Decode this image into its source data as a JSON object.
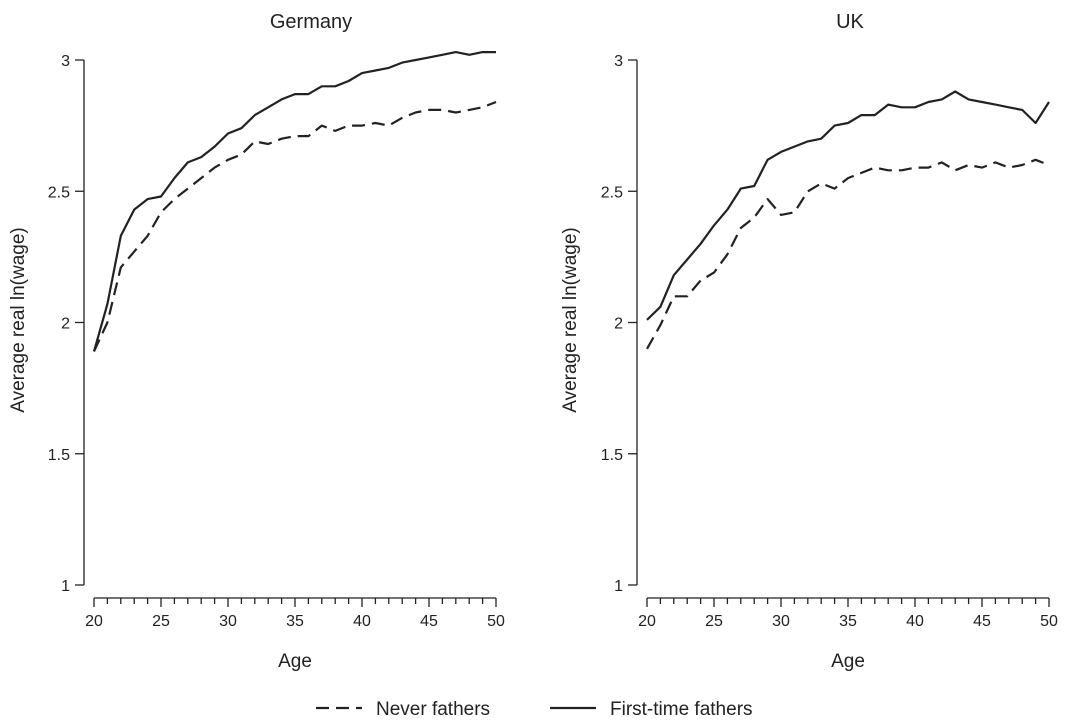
{
  "chart_data": [
    {
      "type": "line",
      "title": "Germany",
      "xlabel": "Age",
      "ylabel": "Average real ln(wage)",
      "xlim": [
        20,
        50
      ],
      "ylim": [
        1,
        3
      ],
      "x_ticks": [
        20,
        25,
        30,
        35,
        40,
        45,
        50
      ],
      "y_ticks": [
        1,
        1.5,
        2,
        2.5,
        3
      ],
      "grid": false,
      "x": [
        20,
        21,
        22,
        23,
        24,
        25,
        26,
        27,
        28,
        29,
        30,
        31,
        32,
        33,
        34,
        35,
        36,
        37,
        38,
        39,
        40,
        41,
        42,
        43,
        44,
        45,
        46,
        47,
        48,
        49,
        50
      ],
      "series": [
        {
          "name": "Never fathers",
          "style": "dashed",
          "values": [
            1.89,
            2.0,
            2.21,
            2.27,
            2.33,
            2.42,
            2.47,
            2.51,
            2.55,
            2.59,
            2.62,
            2.64,
            2.69,
            2.68,
            2.7,
            2.71,
            2.71,
            2.75,
            2.73,
            2.75,
            2.75,
            2.76,
            2.75,
            2.78,
            2.8,
            2.81,
            2.81,
            2.8,
            2.81,
            2.82,
            2.84
          ]
        },
        {
          "name": "First-time fathers",
          "style": "solid",
          "values": [
            1.89,
            2.07,
            2.33,
            2.43,
            2.47,
            2.48,
            2.55,
            2.61,
            2.63,
            2.67,
            2.72,
            2.74,
            2.79,
            2.82,
            2.85,
            2.87,
            2.87,
            2.9,
            2.9,
            2.92,
            2.95,
            2.96,
            2.97,
            2.99,
            3.0,
            3.01,
            3.02,
            3.03,
            3.02,
            3.03,
            3.03
          ]
        }
      ]
    },
    {
      "type": "line",
      "title": "UK",
      "xlabel": "Age",
      "ylabel": "Average real ln(wage)",
      "xlim": [
        20,
        50
      ],
      "ylim": [
        1,
        3
      ],
      "x_ticks": [
        20,
        25,
        30,
        35,
        40,
        45,
        50
      ],
      "y_ticks": [
        1,
        1.5,
        2,
        2.5,
        3
      ],
      "grid": false,
      "x": [
        20,
        21,
        22,
        23,
        24,
        25,
        26,
        27,
        28,
        29,
        30,
        31,
        32,
        33,
        34,
        35,
        36,
        37,
        38,
        39,
        40,
        41,
        42,
        43,
        44,
        45,
        46,
        47,
        48,
        49,
        50
      ],
      "series": [
        {
          "name": "Never fathers",
          "style": "dashed",
          "values": [
            1.9,
            1.99,
            2.1,
            2.1,
            2.16,
            2.19,
            2.26,
            2.36,
            2.4,
            2.47,
            2.41,
            2.42,
            2.5,
            2.53,
            2.51,
            2.55,
            2.57,
            2.59,
            2.58,
            2.58,
            2.59,
            2.59,
            2.61,
            2.58,
            2.6,
            2.59,
            2.61,
            2.59,
            2.6,
            2.62,
            2.6
          ]
        },
        {
          "name": "First-time fathers",
          "style": "solid",
          "values": [
            2.01,
            2.06,
            2.18,
            2.24,
            2.3,
            2.37,
            2.43,
            2.51,
            2.52,
            2.62,
            2.65,
            2.67,
            2.69,
            2.7,
            2.75,
            2.76,
            2.79,
            2.79,
            2.83,
            2.82,
            2.82,
            2.84,
            2.85,
            2.88,
            2.85,
            2.84,
            2.83,
            2.82,
            2.81,
            2.76,
            2.84
          ]
        }
      ]
    }
  ],
  "legend": {
    "position": "bottom",
    "items": [
      {
        "label": "Never fathers",
        "style": "dashed"
      },
      {
        "label": "First-time fathers",
        "style": "solid"
      }
    ]
  }
}
